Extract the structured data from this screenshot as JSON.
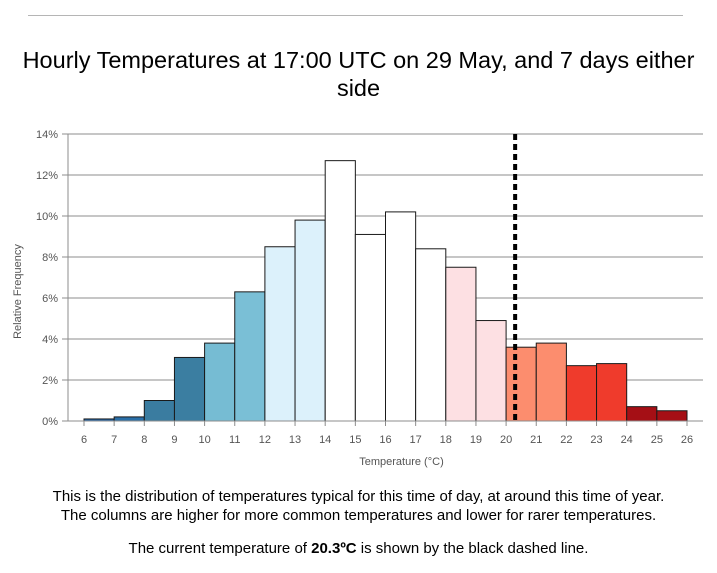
{
  "title": "Hourly Temperatures at 17:00 UTC on 29 May, and 7 days either side",
  "caption": {
    "line1": "This is the distribution of temperatures typical for this time of day, at around this time of year.",
    "line2": "The columns are higher for more common temperatures and lower for rarer temperatures.",
    "line3_prefix": "The current temperature of ",
    "line3_value": "20.3ºC",
    "line3_suffix": " is shown by the black dashed line."
  },
  "chart_data": {
    "type": "bar",
    "title": "Hourly Temperatures at 17:00 UTC on 29 May, and 7 days either side",
    "xlabel": "Temperature (°C)",
    "ylabel": "Relative Frequency",
    "xlim": [
      5.5,
      26.5
    ],
    "ylim": [
      0,
      14
    ],
    "grid": true,
    "xticks": [
      6,
      7,
      8,
      9,
      10,
      11,
      12,
      13,
      14,
      15,
      16,
      17,
      18,
      19,
      20,
      21,
      22,
      23,
      24,
      25,
      26
    ],
    "yticks": [
      0,
      2,
      4,
      6,
      8,
      10,
      12,
      14
    ],
    "ytick_labels": [
      "0%",
      "2%",
      "4%",
      "6%",
      "8%",
      "10%",
      "12%",
      "14%"
    ],
    "bins": [
      {
        "from": 6,
        "to": 7,
        "value": 0.1,
        "color": "#2166ac"
      },
      {
        "from": 7,
        "to": 8,
        "value": 0.2,
        "color": "#2a6fa8"
      },
      {
        "from": 8,
        "to": 9,
        "value": 1.0,
        "color": "#3a7ca0"
      },
      {
        "from": 9,
        "to": 10,
        "value": 3.1,
        "color": "#3b7ea1"
      },
      {
        "from": 10,
        "to": 11,
        "value": 3.8,
        "color": "#76bcd3"
      },
      {
        "from": 11,
        "to": 12,
        "value": 6.3,
        "color": "#7abfd6"
      },
      {
        "from": 12,
        "to": 13,
        "value": 8.5,
        "color": "#dcf1fb"
      },
      {
        "from": 13,
        "to": 14,
        "value": 9.8,
        "color": "#dcf1fb"
      },
      {
        "from": 14,
        "to": 15,
        "value": 12.7,
        "color": "#ffffff"
      },
      {
        "from": 15,
        "to": 16,
        "value": 9.1,
        "color": "#ffffff"
      },
      {
        "from": 16,
        "to": 17,
        "value": 10.2,
        "color": "#ffffff"
      },
      {
        "from": 17,
        "to": 18,
        "value": 8.4,
        "color": "#ffffff"
      },
      {
        "from": 18,
        "to": 19,
        "value": 7.5,
        "color": "#fde0e3"
      },
      {
        "from": 19,
        "to": 20,
        "value": 4.9,
        "color": "#fde0e3"
      },
      {
        "from": 20,
        "to": 21,
        "value": 3.6,
        "color": "#fc8d6e"
      },
      {
        "from": 21,
        "to": 22,
        "value": 3.8,
        "color": "#fc8d6e"
      },
      {
        "from": 22,
        "to": 23,
        "value": 2.7,
        "color": "#ef3b2c"
      },
      {
        "from": 23,
        "to": 24,
        "value": 2.8,
        "color": "#ef3b2c"
      },
      {
        "from": 24,
        "to": 25,
        "value": 0.7,
        "color": "#a50f15"
      },
      {
        "from": 25,
        "to": 26,
        "value": 0.5,
        "color": "#a50f15"
      }
    ],
    "current_temperature": 20.3,
    "current_marker": "black dashed vertical line"
  }
}
